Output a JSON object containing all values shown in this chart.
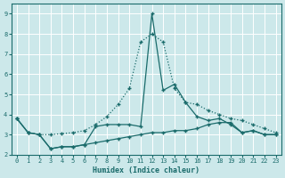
{
  "xlabel": "Humidex (Indice chaleur)",
  "background_color": "#cce8ea",
  "grid_color": "#b0d4d8",
  "line_color": "#1a6b6b",
  "xlim": [
    -0.5,
    23.5
  ],
  "ylim": [
    2,
    9.5
  ],
  "yticks": [
    2,
    3,
    4,
    5,
    6,
    7,
    8,
    9
  ],
  "xticks": [
    0,
    1,
    2,
    3,
    4,
    5,
    6,
    7,
    8,
    9,
    10,
    11,
    12,
    13,
    14,
    15,
    16,
    17,
    18,
    19,
    20,
    21,
    22,
    23
  ],
  "series": [
    {
      "style": "dotted",
      "x": [
        0,
        1,
        2,
        3,
        4,
        5,
        6,
        7,
        8,
        9,
        10,
        11,
        12,
        13,
        14,
        15,
        16,
        17,
        18,
        19,
        20,
        21,
        22,
        23
      ],
      "y": [
        3.8,
        3.1,
        3.0,
        3.0,
        3.05,
        3.1,
        3.2,
        3.5,
        3.9,
        4.5,
        5.3,
        7.6,
        8.0,
        7.6,
        5.3,
        4.6,
        4.5,
        4.2,
        4.0,
        3.8,
        3.7,
        3.5,
        3.3,
        3.1
      ]
    },
    {
      "style": "solid",
      "x": [
        0,
        1,
        2,
        3,
        4,
        5,
        6,
        7,
        8,
        9,
        10,
        11,
        12,
        13,
        14,
        15,
        16,
        17,
        18,
        19,
        20,
        21,
        22,
        23
      ],
      "y": [
        3.8,
        3.1,
        3.0,
        2.3,
        2.4,
        2.4,
        2.5,
        3.4,
        3.5,
        3.5,
        3.5,
        3.4,
        9.0,
        5.2,
        5.5,
        4.6,
        3.9,
        3.7,
        3.8,
        3.5,
        3.1,
        3.2,
        3.0,
        3.0
      ]
    },
    {
      "style": "solid",
      "x": [
        0,
        1,
        2,
        3,
        4,
        5,
        6,
        7,
        8,
        9,
        10,
        11,
        12,
        13,
        14,
        15,
        16,
        17,
        18,
        19,
        20,
        21,
        22,
        23
      ],
      "y": [
        3.8,
        3.1,
        3.0,
        2.3,
        2.4,
        2.4,
        2.5,
        2.6,
        2.7,
        2.8,
        2.9,
        3.0,
        3.1,
        3.1,
        3.2,
        3.2,
        3.3,
        3.5,
        3.6,
        3.6,
        3.1,
        3.2,
        3.0,
        3.0
      ]
    }
  ]
}
